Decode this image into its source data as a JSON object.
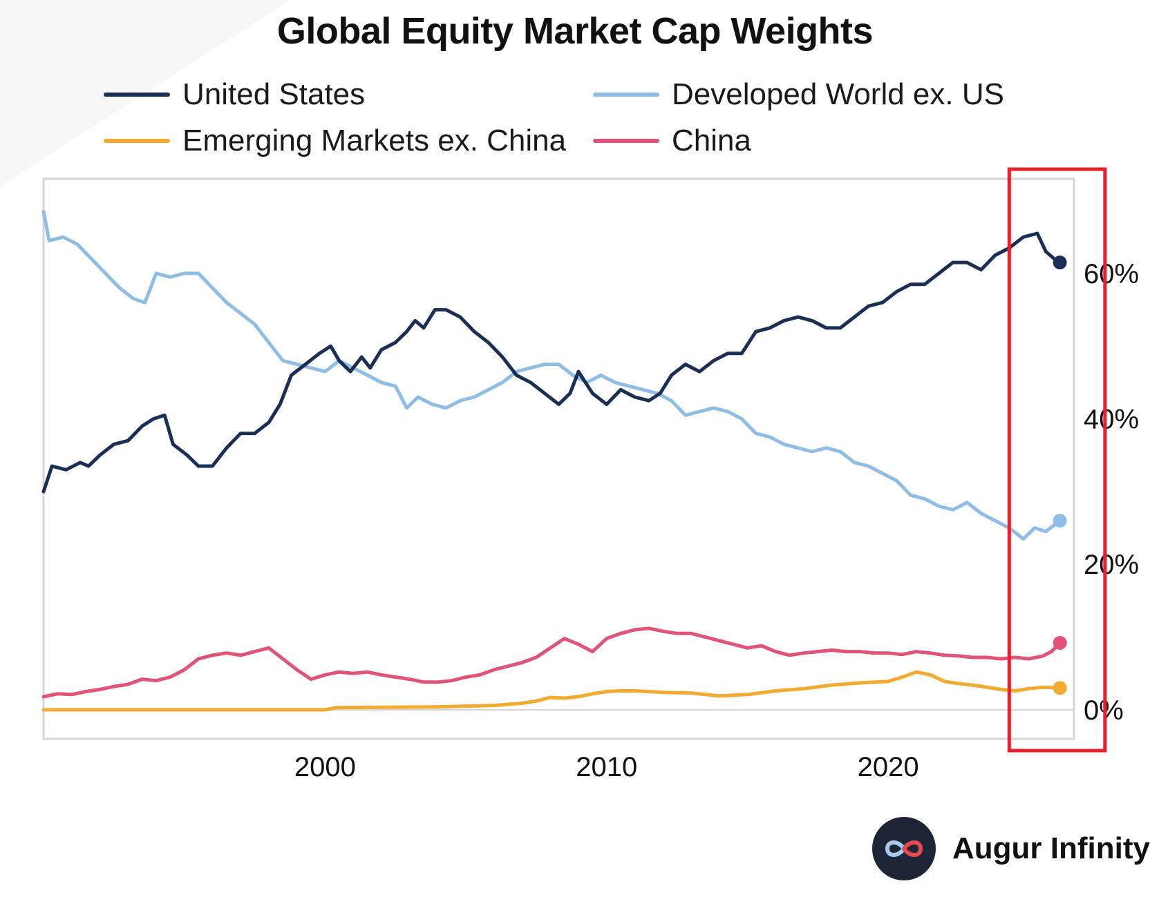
{
  "chart_data": {
    "type": "line",
    "title": "Global Equity Market Cap Weights",
    "xlabel": "",
    "ylabel": "",
    "xlim": [
      1990.0,
      2026.6
    ],
    "ylim": [
      -4,
      73
    ],
    "x_ticks": [
      {
        "value": 2000,
        "label": "2000"
      },
      {
        "value": 2010,
        "label": "2010"
      },
      {
        "value": 2020,
        "label": "2020"
      }
    ],
    "y_ticks": [
      {
        "value": 0,
        "label": "0%"
      },
      {
        "value": 20,
        "label": "20%"
      },
      {
        "value": 40,
        "label": "40%"
      },
      {
        "value": 60,
        "label": "60%"
      }
    ],
    "y_axis_side": "right",
    "legend_position": "top",
    "highlight": {
      "x_from": 2024.3,
      "x_to": 2027.7,
      "color": "#e8202a"
    },
    "series": [
      {
        "name": "United States",
        "color": "#1b2f55",
        "points": [
          [
            1990.0,
            30
          ],
          [
            1990.3,
            33.5
          ],
          [
            1990.8,
            33
          ],
          [
            1991.3,
            34
          ],
          [
            1991.6,
            33.5
          ],
          [
            1992.0,
            35
          ],
          [
            1992.5,
            36.5
          ],
          [
            1993.0,
            37
          ],
          [
            1993.5,
            39
          ],
          [
            1993.9,
            40
          ],
          [
            1994.3,
            40.5
          ],
          [
            1994.6,
            36.5
          ],
          [
            1995.1,
            35
          ],
          [
            1995.5,
            33.5
          ],
          [
            1996.0,
            33.5
          ],
          [
            1996.5,
            36
          ],
          [
            1997.0,
            38
          ],
          [
            1997.5,
            38
          ],
          [
            1998.0,
            39.5
          ],
          [
            1998.4,
            42
          ],
          [
            1998.8,
            46
          ],
          [
            1999.3,
            47.5
          ],
          [
            1999.8,
            49
          ],
          [
            2000.2,
            50
          ],
          [
            2000.5,
            48
          ],
          [
            2000.9,
            46.5
          ],
          [
            2001.3,
            48.5
          ],
          [
            2001.6,
            47
          ],
          [
            2002.0,
            49.5
          ],
          [
            2002.5,
            50.5
          ],
          [
            2002.9,
            52
          ],
          [
            2003.2,
            53.5
          ],
          [
            2003.5,
            52.5
          ],
          [
            2003.9,
            55
          ],
          [
            2004.3,
            55
          ],
          [
            2004.8,
            54
          ],
          [
            2005.3,
            52
          ],
          [
            2005.8,
            50.5
          ],
          [
            2006.3,
            48.5
          ],
          [
            2006.8,
            46
          ],
          [
            2007.3,
            45
          ],
          [
            2007.8,
            43.5
          ],
          [
            2008.3,
            42
          ],
          [
            2008.7,
            43.5
          ],
          [
            2009.0,
            46.5
          ],
          [
            2009.5,
            43.5
          ],
          [
            2010.0,
            42
          ],
          [
            2010.5,
            44
          ],
          [
            2011.0,
            43
          ],
          [
            2011.5,
            42.5
          ],
          [
            2011.9,
            43.5
          ],
          [
            2012.3,
            46
          ],
          [
            2012.8,
            47.5
          ],
          [
            2013.3,
            46.5
          ],
          [
            2013.8,
            48
          ],
          [
            2014.3,
            49
          ],
          [
            2014.8,
            49
          ],
          [
            2015.3,
            52
          ],
          [
            2015.8,
            52.5
          ],
          [
            2016.3,
            53.5
          ],
          [
            2016.8,
            54
          ],
          [
            2017.3,
            53.5
          ],
          [
            2017.8,
            52.5
          ],
          [
            2018.3,
            52.5
          ],
          [
            2018.8,
            54
          ],
          [
            2019.3,
            55.5
          ],
          [
            2019.8,
            56
          ],
          [
            2020.3,
            57.5
          ],
          [
            2020.8,
            58.5
          ],
          [
            2021.3,
            58.5
          ],
          [
            2021.8,
            60
          ],
          [
            2022.3,
            61.5
          ],
          [
            2022.8,
            61.5
          ],
          [
            2023.3,
            60.5
          ],
          [
            2023.8,
            62.5
          ],
          [
            2024.3,
            63.5
          ],
          [
            2024.8,
            65
          ],
          [
            2025.3,
            65.5
          ],
          [
            2025.6,
            63
          ],
          [
            2025.9,
            62
          ],
          [
            2026.1,
            61.5
          ]
        ]
      },
      {
        "name": "Developed World ex. US",
        "color": "#90bde6",
        "points": [
          [
            1990.0,
            68.5
          ],
          [
            1990.2,
            64.5
          ],
          [
            1990.7,
            65
          ],
          [
            1991.2,
            64
          ],
          [
            1991.7,
            62
          ],
          [
            1992.2,
            60
          ],
          [
            1992.7,
            58
          ],
          [
            1993.2,
            56.5
          ],
          [
            1993.6,
            56
          ],
          [
            1994.0,
            60
          ],
          [
            1994.5,
            59.5
          ],
          [
            1995.0,
            60
          ],
          [
            1995.5,
            60
          ],
          [
            1996.0,
            58
          ],
          [
            1996.5,
            56
          ],
          [
            1997.0,
            54.5
          ],
          [
            1997.5,
            53
          ],
          [
            1998.0,
            50.5
          ],
          [
            1998.5,
            48
          ],
          [
            1999.0,
            47.5
          ],
          [
            1999.5,
            47
          ],
          [
            2000.0,
            46.5
          ],
          [
            2000.5,
            48
          ],
          [
            2001.0,
            47
          ],
          [
            2001.5,
            46
          ],
          [
            2002.0,
            45
          ],
          [
            2002.5,
            44.5
          ],
          [
            2002.9,
            41.5
          ],
          [
            2003.3,
            43
          ],
          [
            2003.8,
            42
          ],
          [
            2004.3,
            41.5
          ],
          [
            2004.8,
            42.5
          ],
          [
            2005.3,
            43
          ],
          [
            2005.8,
            44
          ],
          [
            2006.3,
            45
          ],
          [
            2006.8,
            46.5
          ],
          [
            2007.3,
            47
          ],
          [
            2007.8,
            47.5
          ],
          [
            2008.3,
            47.5
          ],
          [
            2008.8,
            46
          ],
          [
            2009.3,
            45
          ],
          [
            2009.8,
            46
          ],
          [
            2010.3,
            45
          ],
          [
            2010.8,
            44.5
          ],
          [
            2011.3,
            44
          ],
          [
            2011.8,
            43.5
          ],
          [
            2012.3,
            42.5
          ],
          [
            2012.8,
            40.5
          ],
          [
            2013.3,
            41
          ],
          [
            2013.8,
            41.5
          ],
          [
            2014.3,
            41
          ],
          [
            2014.8,
            40
          ],
          [
            2015.3,
            38
          ],
          [
            2015.8,
            37.5
          ],
          [
            2016.3,
            36.5
          ],
          [
            2016.8,
            36
          ],
          [
            2017.3,
            35.5
          ],
          [
            2017.8,
            36
          ],
          [
            2018.3,
            35.5
          ],
          [
            2018.8,
            34
          ],
          [
            2019.3,
            33.5
          ],
          [
            2019.8,
            32.5
          ],
          [
            2020.3,
            31.5
          ],
          [
            2020.8,
            29.5
          ],
          [
            2021.3,
            29
          ],
          [
            2021.8,
            28
          ],
          [
            2022.3,
            27.5
          ],
          [
            2022.8,
            28.5
          ],
          [
            2023.3,
            27
          ],
          [
            2023.8,
            26
          ],
          [
            2024.3,
            25
          ],
          [
            2024.8,
            23.5
          ],
          [
            2025.2,
            25
          ],
          [
            2025.6,
            24.5
          ],
          [
            2026.1,
            26
          ]
        ]
      },
      {
        "name": "Emerging Markets ex. China",
        "color": "#f2aa30",
        "points": [
          [
            1990.0,
            0
          ],
          [
            2000.0,
            0
          ],
          [
            2000.4,
            0.3
          ],
          [
            2004.0,
            0.4
          ],
          [
            2006.0,
            0.6
          ],
          [
            2007.0,
            0.9
          ],
          [
            2007.5,
            1.2
          ],
          [
            2008.0,
            1.7
          ],
          [
            2008.5,
            1.6
          ],
          [
            2009.0,
            1.8
          ],
          [
            2009.5,
            2.2
          ],
          [
            2010.0,
            2.5
          ],
          [
            2010.5,
            2.6
          ],
          [
            2011.0,
            2.6
          ],
          [
            2012.0,
            2.4
          ],
          [
            2013.0,
            2.3
          ],
          [
            2014.0,
            1.9
          ],
          [
            2015.0,
            2.1
          ],
          [
            2016.0,
            2.6
          ],
          [
            2017.0,
            2.9
          ],
          [
            2018.0,
            3.4
          ],
          [
            2019.0,
            3.7
          ],
          [
            2020.0,
            3.9
          ],
          [
            2020.5,
            4.5
          ],
          [
            2021.0,
            5.2
          ],
          [
            2021.5,
            4.8
          ],
          [
            2022.0,
            3.9
          ],
          [
            2022.5,
            3.6
          ],
          [
            2023.0,
            3.4
          ],
          [
            2023.5,
            3.1
          ],
          [
            2024.0,
            2.8
          ],
          [
            2024.5,
            2.6
          ],
          [
            2025.0,
            2.9
          ],
          [
            2025.5,
            3.1
          ],
          [
            2026.1,
            3.0
          ]
        ]
      },
      {
        "name": "China",
        "color": "#e05478",
        "points": [
          [
            1990.0,
            1.8
          ],
          [
            1990.5,
            2.2
          ],
          [
            1991.0,
            2.1
          ],
          [
            1991.5,
            2.5
          ],
          [
            1992.0,
            2.8
          ],
          [
            1992.5,
            3.2
          ],
          [
            1993.0,
            3.5
          ],
          [
            1993.5,
            4.2
          ],
          [
            1994.0,
            4.0
          ],
          [
            1994.5,
            4.5
          ],
          [
            1995.0,
            5.5
          ],
          [
            1995.5,
            7.0
          ],
          [
            1996.0,
            7.5
          ],
          [
            1996.5,
            7.8
          ],
          [
            1997.0,
            7.5
          ],
          [
            1997.5,
            8.0
          ],
          [
            1998.0,
            8.5
          ],
          [
            1998.5,
            7.0
          ],
          [
            1999.0,
            5.5
          ],
          [
            1999.5,
            4.2
          ],
          [
            2000.0,
            4.8
          ],
          [
            2000.5,
            5.2
          ],
          [
            2001.0,
            5.0
          ],
          [
            2001.5,
            5.2
          ],
          [
            2002.0,
            4.8
          ],
          [
            2002.5,
            4.5
          ],
          [
            2003.0,
            4.2
          ],
          [
            2003.5,
            3.8
          ],
          [
            2004.0,
            3.8
          ],
          [
            2004.5,
            4.0
          ],
          [
            2005.0,
            4.5
          ],
          [
            2005.5,
            4.8
          ],
          [
            2006.0,
            5.5
          ],
          [
            2006.5,
            6.0
          ],
          [
            2007.0,
            6.5
          ],
          [
            2007.5,
            7.2
          ],
          [
            2008.0,
            8.5
          ],
          [
            2008.5,
            9.8
          ],
          [
            2009.0,
            9.0
          ],
          [
            2009.5,
            8.0
          ],
          [
            2010.0,
            9.8
          ],
          [
            2010.5,
            10.5
          ],
          [
            2011.0,
            11.0
          ],
          [
            2011.5,
            11.2
          ],
          [
            2012.0,
            10.8
          ],
          [
            2012.5,
            10.5
          ],
          [
            2013.0,
            10.5
          ],
          [
            2013.5,
            10.0
          ],
          [
            2014.0,
            9.5
          ],
          [
            2014.5,
            9.0
          ],
          [
            2015.0,
            8.5
          ],
          [
            2015.5,
            8.8
          ],
          [
            2016.0,
            8.0
          ],
          [
            2016.5,
            7.5
          ],
          [
            2017.0,
            7.8
          ],
          [
            2017.5,
            8.0
          ],
          [
            2018.0,
            8.2
          ],
          [
            2018.5,
            8.0
          ],
          [
            2019.0,
            8.0
          ],
          [
            2019.5,
            7.8
          ],
          [
            2020.0,
            7.8
          ],
          [
            2020.5,
            7.6
          ],
          [
            2021.0,
            8.0
          ],
          [
            2021.5,
            7.8
          ],
          [
            2022.0,
            7.5
          ],
          [
            2022.5,
            7.4
          ],
          [
            2023.0,
            7.2
          ],
          [
            2023.5,
            7.2
          ],
          [
            2024.0,
            7.0
          ],
          [
            2024.5,
            7.2
          ],
          [
            2025.0,
            7.0
          ],
          [
            2025.5,
            7.4
          ],
          [
            2025.8,
            8.0
          ],
          [
            2026.1,
            9.2
          ]
        ]
      }
    ]
  },
  "branding": {
    "name": "Augur Infinity",
    "logo_icon": "infinity-logo-icon"
  }
}
